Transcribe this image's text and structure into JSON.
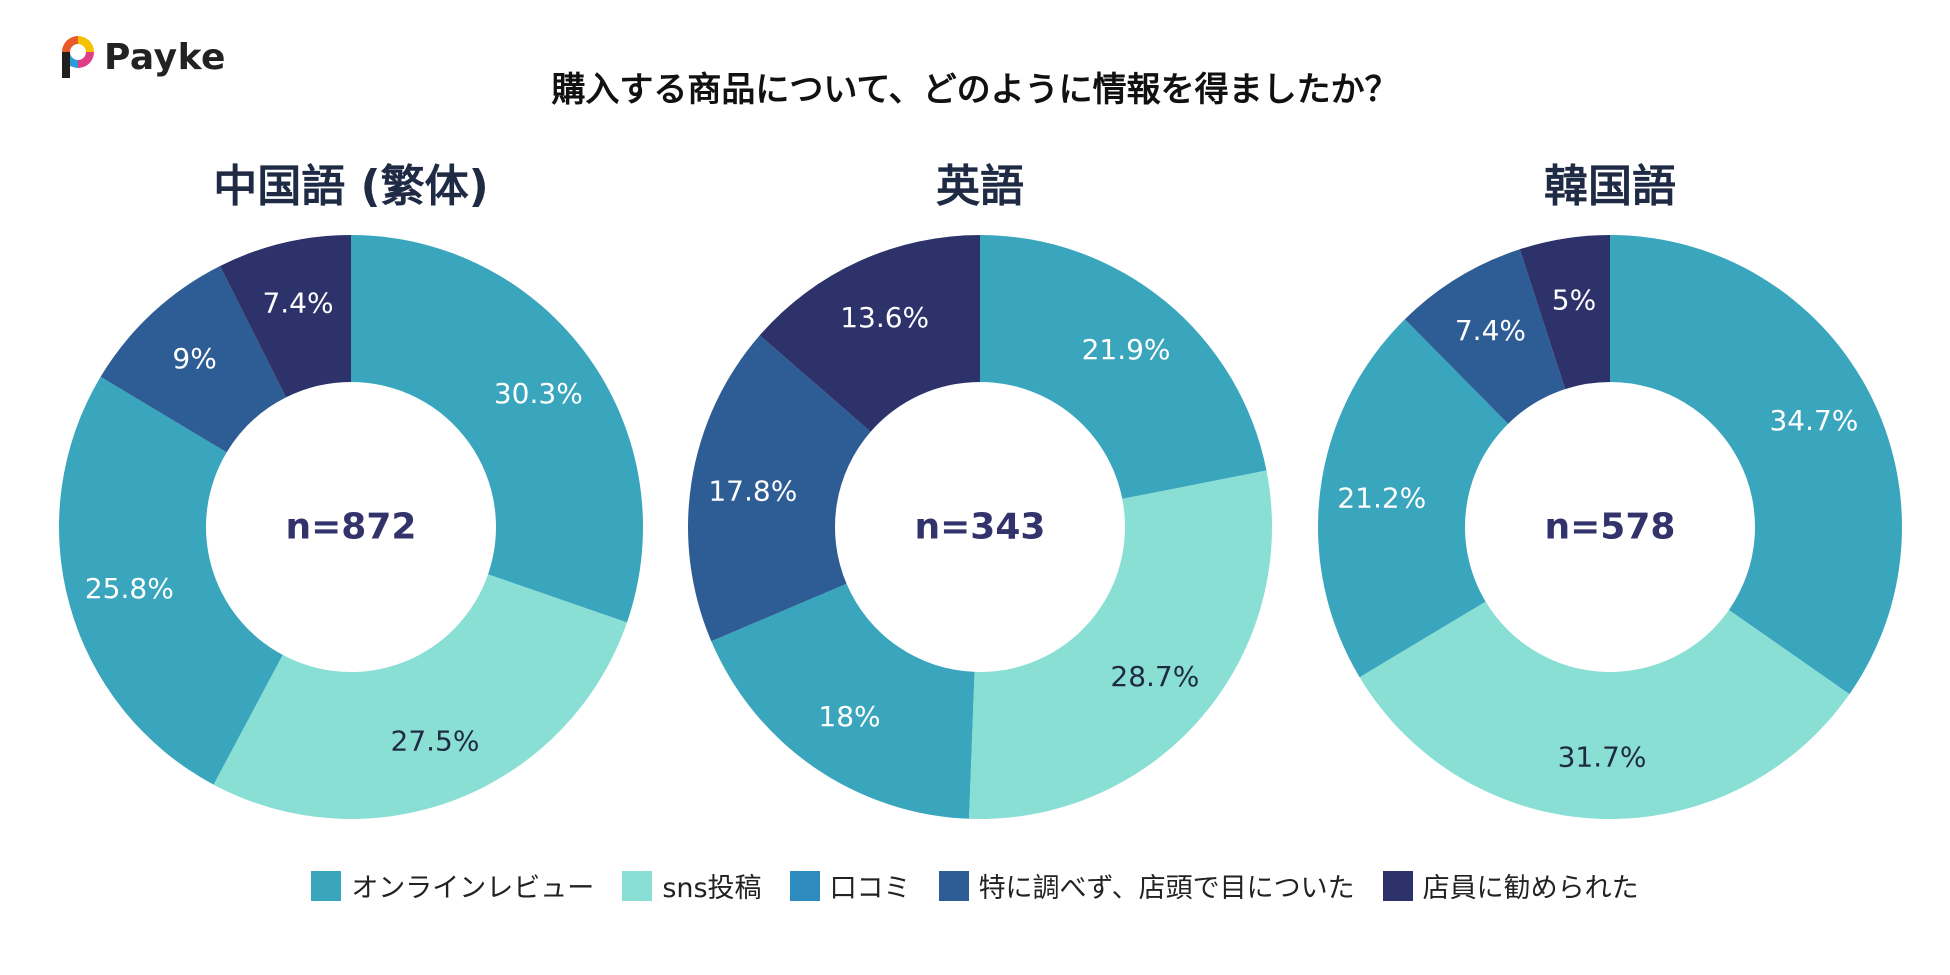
{
  "brand": {
    "name": "Payke"
  },
  "title": "購入する商品について、どのように情報を得ましたか？",
  "colors": {
    "online_review": "#3aa6bd",
    "sns": "#8adfd5",
    "word_of_mouth": "#2e8bbd",
    "storefront": "#2e5d96",
    "staff": "#2e326b",
    "center_label": "#33336b"
  },
  "chart_data": [
    {
      "type": "pie",
      "variant": "donut",
      "title": "中国語 (繁体)",
      "center_label": "n=872",
      "slices": [
        {
          "category": "オンラインレビュー",
          "value": 30.3,
          "label": "30.3%",
          "color": "#3aa6bd",
          "label_color": "#ffffff"
        },
        {
          "category": "sns投稿",
          "value": 27.5,
          "label": "27.5%",
          "color": "#8adfd5",
          "label_color": "#1f2a44"
        },
        {
          "category": "口コミ",
          "value": 25.8,
          "label": "25.8%",
          "color": "#3aa6bd",
          "label_color": "#ffffff"
        },
        {
          "category": "特に調べず、店頭で目についた",
          "value": 9,
          "label": "9%",
          "color": "#2e5d96",
          "label_color": "#ffffff"
        },
        {
          "category": "店員に勧められた",
          "value": 7.4,
          "label": "7.4%",
          "color": "#2e326b",
          "label_color": "#ffffff"
        }
      ]
    },
    {
      "type": "pie",
      "variant": "donut",
      "title": "英語",
      "center_label": "n=343",
      "slices": [
        {
          "category": "オンラインレビュー",
          "value": 21.9,
          "label": "21.9%",
          "color": "#3aa6bd",
          "label_color": "#ffffff"
        },
        {
          "category": "sns投稿",
          "value": 28.7,
          "label": "28.7%",
          "color": "#8adfd5",
          "label_color": "#1f2a44"
        },
        {
          "category": "口コミ",
          "value": 18,
          "label": "18%",
          "color": "#3aa6bd",
          "label_color": "#ffffff"
        },
        {
          "category": "特に調べず、店頭で目についた",
          "value": 17.8,
          "label": "17.8%",
          "color": "#2e5d96",
          "label_color": "#ffffff"
        },
        {
          "category": "店員に勧められた",
          "value": 13.6,
          "label": "13.6%",
          "color": "#2e326b",
          "label_color": "#ffffff"
        }
      ]
    },
    {
      "type": "pie",
      "variant": "donut",
      "title": "韓国語",
      "center_label": "n=578",
      "slices": [
        {
          "category": "オンラインレビュー",
          "value": 34.7,
          "label": "34.7%",
          "color": "#3aa6bd",
          "label_color": "#ffffff"
        },
        {
          "category": "sns投稿",
          "value": 31.7,
          "label": "31.7%",
          "color": "#8adfd5",
          "label_color": "#1f2a44"
        },
        {
          "category": "口コミ",
          "value": 21.2,
          "label": "21.2%",
          "color": "#3aa6bd",
          "label_color": "#ffffff"
        },
        {
          "category": "特に調べず、店頭で目についた",
          "value": 7.4,
          "label": "7.4%",
          "color": "#2e5d96",
          "label_color": "#ffffff"
        },
        {
          "category": "店員に勧められた",
          "value": 5,
          "label": "5%",
          "color": "#2e326b",
          "label_color": "#ffffff"
        }
      ]
    }
  ],
  "legend": [
    {
      "label": "オンラインレビュー",
      "color": "#3aa6bd"
    },
    {
      "label": "sns投稿",
      "color": "#8adfd5"
    },
    {
      "label": "口コミ",
      "color": "#2e8bbd"
    },
    {
      "label": "特に調べず、店頭で目についた",
      "color": "#2e5d96"
    },
    {
      "label": "店員に勧められた",
      "color": "#2e326b"
    }
  ]
}
